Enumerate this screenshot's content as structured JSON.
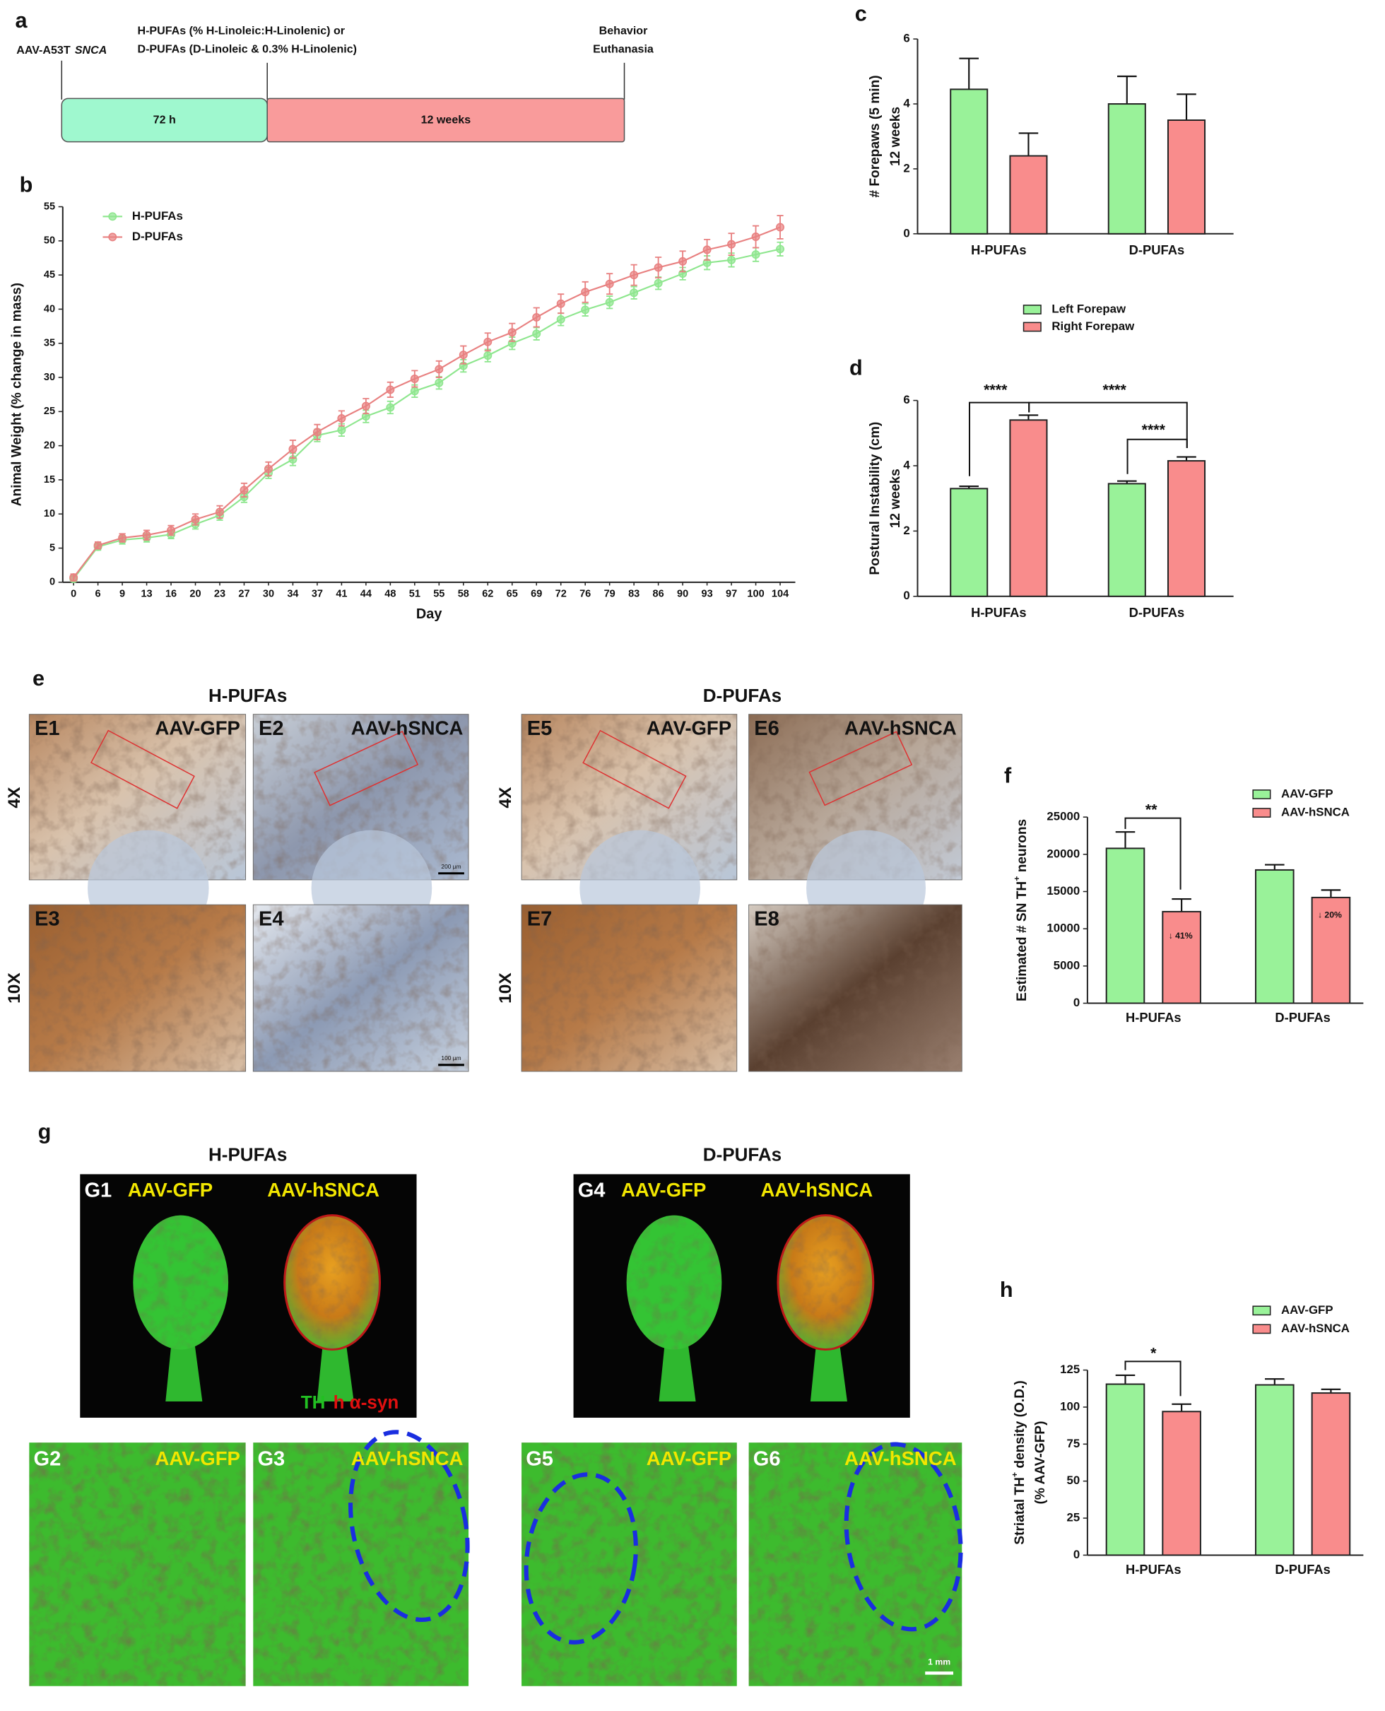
{
  "timeline": {
    "label": "a",
    "start": {
      "text": "AAV-A53T",
      "gene": "SNCA"
    },
    "diet": [
      "H-PUFAs (% H-Linoleic:H-Linolenic) or",
      "D-PUFAs (D-Linoleic & 0.3% H-Linolenic)"
    ],
    "end": [
      "Behavior",
      "Euthanasia"
    ],
    "phases": [
      {
        "label": "72 h",
        "color": "#9ff8cf"
      },
      {
        "label": "12 weeks",
        "color": "#f99b9b"
      }
    ]
  },
  "chart_data": [
    {
      "label": "b",
      "type": "line",
      "x_label": "Day",
      "y_label": [
        [
          "Animal Weight (% change in mass)"
        ]
      ],
      "categories": [
        "0",
        "6",
        "9",
        "13",
        "16",
        "20",
        "23",
        "27",
        "30",
        "34",
        "37",
        "41",
        "44",
        "48",
        "51",
        "55",
        "58",
        "62",
        "65",
        "69",
        "72",
        "76",
        "79",
        "83",
        "86",
        "90",
        "93",
        "97",
        "100",
        "104"
      ],
      "series": [
        {
          "name": "H-PUFAs",
          "color": "#8ee68e",
          "values": [
            0.5,
            5.2,
            6.2,
            6.5,
            7.0,
            8.5,
            9.8,
            12.5,
            16.0,
            18.0,
            21.5,
            22.3,
            24.3,
            25.6,
            28.0,
            29.2,
            31.7,
            33.2,
            35.0,
            36.4,
            38.5,
            39.9,
            41.0,
            42.4,
            43.8,
            45.2,
            46.8,
            47.2,
            48.0,
            48.8
          ],
          "errors": [
            0.4,
            0.5,
            0.6,
            0.6,
            0.6,
            0.7,
            0.7,
            0.8,
            0.8,
            0.9,
            0.9,
            0.9,
            0.9,
            0.9,
            0.9,
            0.9,
            0.9,
            0.9,
            0.9,
            0.9,
            0.9,
            0.9,
            0.9,
            0.9,
            0.9,
            0.9,
            1.0,
            1.0,
            1.0,
            1.0
          ]
        },
        {
          "name": "D-PUFAs",
          "color": "#e88080",
          "values": [
            0.7,
            5.4,
            6.5,
            6.9,
            7.6,
            9.2,
            10.3,
            13.5,
            16.6,
            19.5,
            22.0,
            24.0,
            25.8,
            28.2,
            29.8,
            31.2,
            33.3,
            35.2,
            36.6,
            38.8,
            40.8,
            42.5,
            43.7,
            45.0,
            46.1,
            47.0,
            48.7,
            49.5,
            50.6,
            52.0
          ],
          "errors": [
            0.5,
            0.5,
            0.6,
            0.7,
            0.7,
            0.8,
            0.9,
            1.0,
            1.0,
            1.3,
            1.1,
            1.1,
            1.1,
            1.1,
            1.2,
            1.2,
            1.3,
            1.3,
            1.3,
            1.4,
            1.4,
            1.5,
            1.5,
            1.5,
            1.5,
            1.5,
            1.5,
            1.6,
            1.6,
            1.7
          ]
        }
      ],
      "ylim": [
        0,
        55
      ],
      "yticks": [
        0,
        5,
        10,
        15,
        20,
        25,
        30,
        35,
        40,
        45,
        50,
        55
      ],
      "legend": "upper left"
    },
    {
      "label": "c",
      "type": "bar",
      "y_label": [
        [
          "# Forepaws (5 min)"
        ],
        [
          "12 weeks"
        ]
      ],
      "categories": [
        "H-PUFAs",
        "D-PUFAs"
      ],
      "series": [
        {
          "name": "Left Forepaw",
          "color": "#99f299",
          "values": [
            4.45,
            4.0
          ],
          "errors": [
            0.95,
            0.85
          ]
        },
        {
          "name": "Right Forepaw",
          "color": "#f98c8c",
          "values": [
            2.4,
            3.5
          ],
          "errors": [
            0.7,
            0.8
          ]
        }
      ],
      "ylim": [
        0,
        6
      ],
      "yticks": [
        0,
        2,
        4,
        6
      ],
      "legend": "below"
    },
    {
      "label": "d",
      "type": "bar",
      "y_label": [
        [
          "Postural Instability (cm)"
        ],
        [
          "12 weeks"
        ]
      ],
      "categories": [
        "H-PUFAs",
        "D-PUFAs"
      ],
      "series": [
        {
          "color": "#99f299",
          "values": [
            3.3,
            3.45
          ],
          "errors": [
            0.07,
            0.08
          ]
        },
        {
          "color": "#f98c8c",
          "values": [
            5.4,
            4.15
          ],
          "errors": [
            0.15,
            0.12
          ]
        }
      ],
      "ylim": [
        0,
        6
      ],
      "yticks": [
        0,
        2,
        4,
        6
      ],
      "annotations": [
        "****",
        "****",
        "****"
      ]
    },
    {
      "label": "f",
      "type": "bar",
      "y_label": [
        [
          "Estimated # SN TH",
          "+",
          " neurons"
        ]
      ],
      "categories": [
        "H-PUFAs",
        "D-PUFAs"
      ],
      "series": [
        {
          "name": "AAV-GFP",
          "color": "#99f299",
          "values": [
            20800,
            17900
          ],
          "errors": [
            2200,
            700
          ]
        },
        {
          "name": "AAV-hSNCA",
          "color": "#f98c8c",
          "values": [
            12300,
            14200
          ],
          "errors": [
            1700,
            1000
          ]
        }
      ],
      "ylim": [
        0,
        25000
      ],
      "yticks": [
        0,
        5000,
        10000,
        15000,
        20000,
        25000
      ],
      "legend": "upper right",
      "annotations": [
        "**",
        "↓ 41%",
        "↓ 20%"
      ]
    },
    {
      "label": "h",
      "type": "bar",
      "y_label": [
        [
          "Striatal TH",
          "+",
          " density (O.D.)"
        ],
        [
          "(% AAV-GFP)"
        ]
      ],
      "categories": [
        "H-PUFAs",
        "D-PUFAs"
      ],
      "series": [
        {
          "name": "AAV-GFP",
          "color": "#99f299",
          "values": [
            115.5,
            115
          ],
          "errors": [
            6,
            4
          ]
        },
        {
          "name": "AAV-hSNCA",
          "color": "#f98c8c",
          "values": [
            97,
            109.5
          ],
          "errors": [
            5,
            2.5
          ]
        }
      ],
      "ylim": [
        0,
        125
      ],
      "yticks": [
        0,
        25,
        50,
        75,
        100,
        125
      ],
      "legend": "upper right",
      "annotations": [
        "*"
      ]
    }
  ],
  "figure_e": {
    "label": "e",
    "titles": [
      "H-PUFAs",
      "D-PUFAs"
    ],
    "magnifications": [
      [
        "4X",
        "10X"
      ],
      [
        "4X",
        "10X"
      ]
    ],
    "panels": [
      {
        "tag": "E1",
        "condition": "AAV-GFP"
      },
      {
        "tag": "E2",
        "condition": "AAV-hSNCA",
        "scale": "200 µm"
      },
      {
        "tag": "E3"
      },
      {
        "tag": "E4",
        "scale": "100 µm"
      },
      {
        "tag": "E5",
        "condition": "AAV-GFP"
      },
      {
        "tag": "E6",
        "condition": "AAV-hSNCA"
      },
      {
        "tag": "E7"
      },
      {
        "tag": "E8"
      }
    ]
  },
  "figure_g": {
    "label": "g",
    "titles": [
      "H-PUFAs",
      "D-PUFAs"
    ],
    "panels": [
      {
        "tag": "G1",
        "conditions": [
          "AAV-GFP",
          "AAV-hSNCA"
        ],
        "stain": [
          "TH",
          "h α-syn"
        ]
      },
      {
        "tag": "G2",
        "conditions": [
          "AAV-GFP"
        ]
      },
      {
        "tag": "G3",
        "conditions": [
          "AAV-hSNCA"
        ]
      },
      {
        "tag": "G4",
        "conditions": [
          "AAV-GFP",
          "AAV-hSNCA"
        ]
      },
      {
        "tag": "G5",
        "conditions": [
          "AAV-GFP"
        ]
      },
      {
        "tag": "G6",
        "conditions": [
          "AAV-hSNCA"
        ],
        "scale": "1 mm"
      }
    ]
  }
}
